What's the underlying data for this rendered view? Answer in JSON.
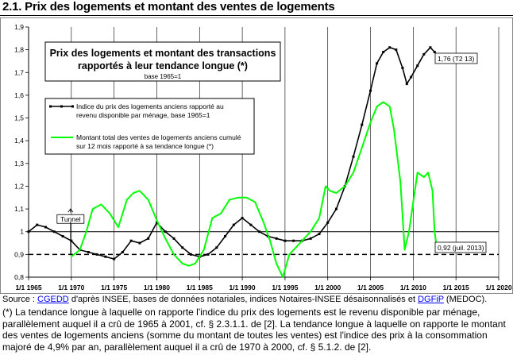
{
  "page": {
    "title": "2.1. Prix des logements et montant des ventes de logements",
    "source_prefix": "Source : ",
    "source_link": "CGEDD",
    "source_suffix": " d'après INSEE,  bases de données notariales, indices Notaires-INSEE désaisonnalisés et ",
    "source_link2": "DGFiP",
    "source_end": " (MEDOC).",
    "footnote": "(*) La tendance longue à laquelle on rapporte l'indice du prix des logements est le revenu disponible par ménage, parallèlement auquel il a crû de 1965 à 2001, cf. § 2.3.1.1. de [2].  La tendance longue à laquelle on rapporte le montant des ventes de logements anciens (somme du montant de toutes les ventes) est l'indice des prix à la consommation majoré de 4,9% par an, parallèlement auquel il a crû de 1970 à 2000, cf. § 5.1.2. de [2]."
  },
  "chart_data": {
    "type": "line",
    "title": "Prix des logements et montant des transactions rapportés à leur tendance longue (*)",
    "subtitle": "base 1965=1",
    "title_line1": "Prix des logements et montant des transactions",
    "title_line2": "rapportés à leur tendance longue (*)",
    "xlabel": "",
    "ylabel": "",
    "xlim": [
      1965,
      2020
    ],
    "ylim": [
      0.8,
      1.9
    ],
    "x_ticks": [
      "1/1 1965",
      "1/1 1970",
      "1/1 1975",
      "1/1 1980",
      "1/1 1985",
      "1/1 1990",
      "1/1 1995",
      "1/1 2000",
      "1/1 2005",
      "1/1 2010",
      "1/1 2015",
      "1/1 2020"
    ],
    "y_ticks": [
      "0,8",
      "0,9",
      "1",
      "1,1",
      "1,2",
      "1,3",
      "1,4",
      "1,5",
      "1,6",
      "1,7",
      "1,8",
      "1,9"
    ],
    "grid": "vertical",
    "reference_lines": [
      1.0,
      0.9
    ],
    "series": [
      {
        "name": "Indice du prix des logements anciens rapporté au revenu disponible par ménage, base 1965=1",
        "name_line1": "Indice du prix des logements anciens rapporté au",
        "name_line2": "revenu disponible par ménage, base 1965=1",
        "color": "#000000",
        "x": [
          1965,
          1966,
          1967,
          1968,
          1969,
          1970,
          1971,
          1972,
          1973,
          1974,
          1975,
          1976,
          1977,
          1978,
          1979,
          1980,
          1981,
          1982,
          1983,
          1984,
          1985,
          1986,
          1987,
          1988,
          1989,
          1990,
          1991,
          1992,
          1993,
          1994,
          1995,
          1996,
          1997,
          1998,
          1999,
          2000,
          2001,
          2002,
          2003,
          2004,
          2005,
          2005.75,
          2006.5,
          2007.25,
          2008,
          2008.75,
          2009.25,
          2009.75,
          2010.5,
          2011.25,
          2012,
          2012.5,
          2013.25
        ],
        "y": [
          1.0,
          1.03,
          1.02,
          1.0,
          0.98,
          0.96,
          0.92,
          0.91,
          0.9,
          0.89,
          0.88,
          0.91,
          0.96,
          0.95,
          0.97,
          1.04,
          1.0,
          0.97,
          0.93,
          0.9,
          0.89,
          0.9,
          0.93,
          0.98,
          1.03,
          1.06,
          1.03,
          1.0,
          0.98,
          0.97,
          0.96,
          0.96,
          0.96,
          0.97,
          0.99,
          1.04,
          1.1,
          1.2,
          1.33,
          1.47,
          1.62,
          1.74,
          1.79,
          1.81,
          1.8,
          1.72,
          1.65,
          1.68,
          1.73,
          1.78,
          1.81,
          1.79,
          1.76
        ]
      },
      {
        "name": "Montant total des ventes de logements anciens cumulé sur 12 mois rapporté à sa tendance longue (*)",
        "name_line1": "Montant total des ventes de logements anciens cumulé",
        "name_line2": "sur 12 mois rapporté à sa tendance longue (*)",
        "color": "#00ff00",
        "x": [
          1970,
          1971,
          1971.75,
          1972.5,
          1973.5,
          1974.5,
          1975.5,
          1976.5,
          1977.25,
          1978,
          1979,
          1980,
          1981,
          1982,
          1983,
          1983.75,
          1984.5,
          1985.5,
          1986.5,
          1987.5,
          1988.5,
          1989.5,
          1990.5,
          1991.5,
          1992.5,
          1993.25,
          1994,
          1994.75,
          1995.5,
          1996.25,
          1997,
          1998,
          1999,
          1999.75,
          2000.25,
          2001,
          2002,
          2003,
          2004,
          2005,
          2005.75,
          2006.5,
          2007.25,
          2007.75,
          2008.5,
          2009,
          2009.5,
          2010.5,
          2011.25,
          2011.75,
          2012.25,
          2012.5,
          2012.75,
          2013
        ],
        "y": [
          0.89,
          0.92,
          1.0,
          1.1,
          1.12,
          1.08,
          1.02,
          1.14,
          1.17,
          1.18,
          1.14,
          1.05,
          0.97,
          0.9,
          0.86,
          0.85,
          0.86,
          0.92,
          1.06,
          1.08,
          1.14,
          1.15,
          1.15,
          1.13,
          1.04,
          0.96,
          0.86,
          0.8,
          0.9,
          0.93,
          0.96,
          1.0,
          1.06,
          1.2,
          1.18,
          1.17,
          1.2,
          1.26,
          1.37,
          1.48,
          1.55,
          1.57,
          1.55,
          1.45,
          1.22,
          0.92,
          1.0,
          1.26,
          1.24,
          1.26,
          1.18,
          1.0,
          0.93,
          0.92
        ]
      }
    ],
    "annotations": [
      {
        "text": "1,76 (T2 13)",
        "x": 2013.25,
        "y": 1.76
      },
      {
        "text": "0,92 (juil. 2013)",
        "x": 2013.5,
        "y": 0.92
      },
      {
        "text": "Tunnel",
        "x": 1970,
        "y": 1.05
      }
    ]
  }
}
